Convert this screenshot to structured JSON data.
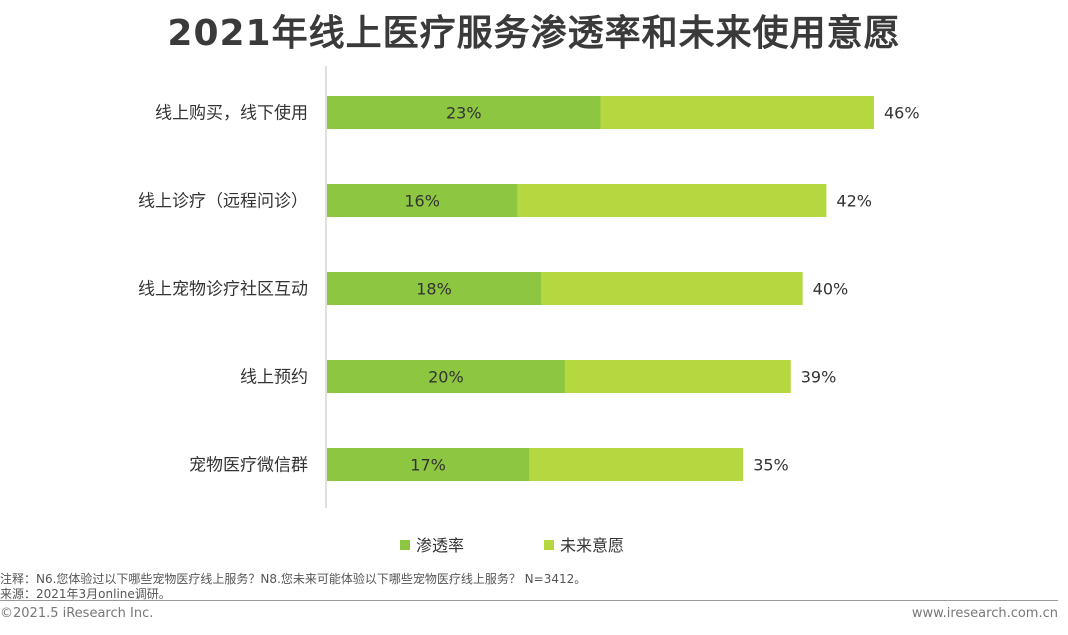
{
  "page": {
    "title": "2021年线上医疗服务渗透率和未来使用意愿",
    "notes": [
      "注释：N6.您体验过以下哪些宠物医疗线上服务？N8.您未来可能体验以下哪些宠物医疗线上服务？ N=3412。",
      "来源：2021年3月online调研。"
    ],
    "footer_left": "©2021.5 iResearch Inc.",
    "footer_right": "www.iresearch.com.cn"
  },
  "chart_data": {
    "type": "bar",
    "orientation": "horizontal",
    "title": "2021年线上医疗服务渗透率和未来使用意愿",
    "categories": [
      "线上购买，线下使用",
      "线上诊疗（远程问诊）",
      "线上宠物诊疗社区互动",
      "线上预约",
      "宠物医疗微信群"
    ],
    "series": [
      {
        "name": "渗透率",
        "values": [
          23,
          16,
          18,
          20,
          17
        ],
        "color": "#8dc641"
      },
      {
        "name": "未来意愿",
        "values": [
          46,
          42,
          40,
          39,
          35
        ],
        "color": "#b5d841"
      }
    ],
    "value_suffix": "%",
    "xlim": [
      0,
      50
    ],
    "grid": false,
    "legend_position": "bottom"
  }
}
